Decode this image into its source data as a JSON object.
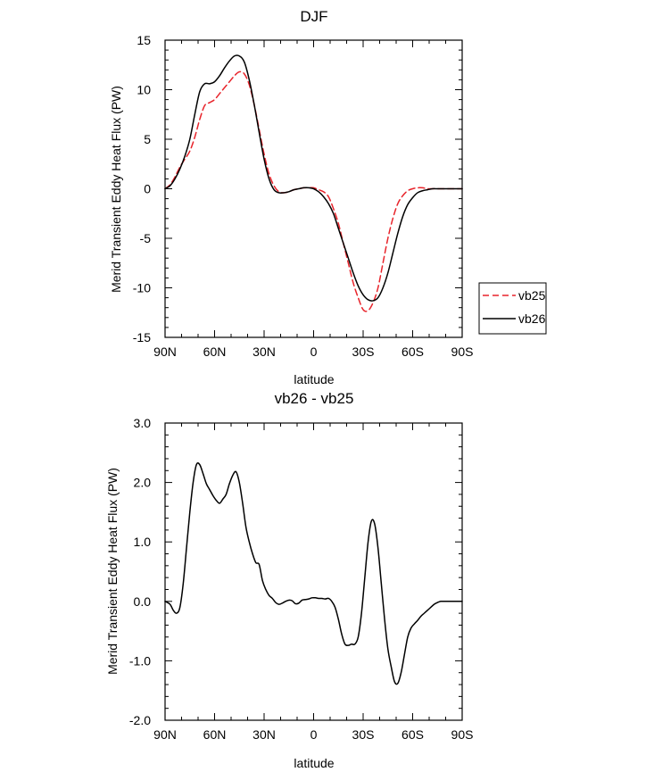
{
  "chart_data": [
    {
      "type": "line",
      "title": "DJF",
      "xlabel": "latitude",
      "ylabel": "Merid Transient Eddy Heat Flux (PW)",
      "xlim": [
        90,
        -90
      ],
      "ylim": [
        -15,
        15
      ],
      "x_ticks": [
        90,
        60,
        30,
        0,
        -30,
        -60,
        -90
      ],
      "x_tick_labels": [
        "90N",
        "60N",
        "30N",
        "0",
        "30S",
        "60S",
        "90S"
      ],
      "y_ticks": [
        -15,
        -10,
        -5,
        0,
        5,
        10,
        15
      ],
      "y_tick_labels": [
        "-15",
        "-10",
        "-5",
        "0",
        "5",
        "10",
        "15"
      ],
      "legend_position": "right",
      "series": [
        {
          "name": "vb25",
          "color": "#e8242b",
          "dash": "dashed",
          "x": [
            90,
            87,
            84,
            81,
            78,
            75,
            72,
            69,
            66,
            63,
            60,
            57,
            54,
            51,
            48,
            45,
            42,
            39,
            36,
            33,
            30,
            27,
            24,
            21,
            18,
            15,
            12,
            9,
            6,
            3,
            0,
            -3,
            -6,
            -9,
            -12,
            -15,
            -18,
            -21,
            -24,
            -27,
            -30,
            -33,
            -36,
            -39,
            -42,
            -45,
            -48,
            -51,
            -54,
            -57,
            -60,
            -63,
            -66,
            -69,
            -72,
            -75,
            -78,
            -81,
            -84,
            -87,
            -90
          ],
          "values": [
            0,
            0.4,
            1.2,
            2.2,
            3.0,
            3.8,
            5.2,
            7.0,
            8.4,
            8.7,
            9.0,
            9.6,
            10.2,
            10.8,
            11.4,
            11.8,
            11.6,
            10.5,
            8.5,
            6.0,
            3.5,
            1.5,
            0.3,
            -0.3,
            -0.4,
            -0.3,
            -0.1,
            0.0,
            0.1,
            0.1,
            0.1,
            -0.1,
            -0.3,
            -0.8,
            -2.0,
            -3.5,
            -5.5,
            -7.5,
            -9.5,
            -11.0,
            -12.2,
            -12.3,
            -11.5,
            -10.0,
            -7.5,
            -5.0,
            -3.0,
            -1.5,
            -0.7,
            -0.2,
            0.0,
            0.1,
            0.1,
            0.0,
            0.0,
            0.0,
            0.0,
            0.0,
            0.0,
            0.0,
            0.0
          ]
        },
        {
          "name": "vb26",
          "color": "#000000",
          "dash": "solid",
          "x": [
            90,
            87,
            84,
            81,
            78,
            75,
            72,
            69,
            66,
            63,
            60,
            57,
            54,
            51,
            48,
            45,
            42,
            39,
            36,
            33,
            30,
            27,
            24,
            21,
            18,
            15,
            12,
            9,
            6,
            3,
            0,
            -3,
            -6,
            -9,
            -12,
            -15,
            -18,
            -21,
            -24,
            -27,
            -30,
            -33,
            -36,
            -39,
            -42,
            -45,
            -48,
            -51,
            -54,
            -57,
            -60,
            -63,
            -66,
            -69,
            -72,
            -75,
            -78,
            -81,
            -84,
            -87,
            -90
          ],
          "values": [
            0,
            0.3,
            1.0,
            2.0,
            3.3,
            5.0,
            7.5,
            9.8,
            10.6,
            10.6,
            10.8,
            11.4,
            12.2,
            12.9,
            13.4,
            13.4,
            12.8,
            11.0,
            8.5,
            5.7,
            3.0,
            1.0,
            -0.1,
            -0.4,
            -0.4,
            -0.3,
            -0.1,
            0.0,
            0.1,
            0.1,
            0.0,
            -0.3,
            -0.8,
            -1.5,
            -2.5,
            -4.0,
            -5.5,
            -7.0,
            -8.5,
            -9.8,
            -10.7,
            -11.2,
            -11.3,
            -11.0,
            -10.0,
            -8.5,
            -6.5,
            -4.5,
            -2.8,
            -1.6,
            -0.9,
            -0.4,
            -0.2,
            -0.1,
            0.0,
            0.0,
            0.0,
            0.0,
            0.0,
            0.0,
            0.0
          ]
        }
      ]
    },
    {
      "type": "line",
      "title": "vb26 - vb25",
      "xlabel": "latitude",
      "ylabel": "Merid Transient Eddy Heat Flux (PW)",
      "xlim": [
        90,
        -90
      ],
      "ylim": [
        -2.0,
        3.0
      ],
      "x_ticks": [
        90,
        60,
        30,
        0,
        -30,
        -60,
        -90
      ],
      "x_tick_labels": [
        "90N",
        "60N",
        "30N",
        "0",
        "30S",
        "60S",
        "90S"
      ],
      "y_ticks": [
        -2.0,
        -1.0,
        0.0,
        1.0,
        2.0,
        3.0
      ],
      "y_tick_labels": [
        "-2.0",
        "-1.0",
        "0.0",
        "1.0",
        "2.0",
        "3.0"
      ],
      "series": [
        {
          "color": "#000000",
          "dash": "solid",
          "x": [
            90,
            87,
            85,
            83,
            81,
            79,
            77,
            75,
            73,
            71,
            69,
            67,
            65,
            63,
            61,
            59,
            57,
            55,
            53,
            51,
            49,
            47,
            45,
            43,
            41,
            39,
            37,
            35,
            33,
            31,
            29,
            27,
            25,
            23,
            21,
            19,
            17,
            15,
            13,
            11,
            9,
            7,
            5,
            3,
            1,
            -1,
            -3,
            -5,
            -7,
            -9,
            -11,
            -13,
            -15,
            -17,
            -19,
            -21,
            -23,
            -25,
            -27,
            -29,
            -31,
            -33,
            -35,
            -37,
            -39,
            -41,
            -43,
            -45,
            -47,
            -49,
            -51,
            -53,
            -55,
            -57,
            -59,
            -61,
            -63,
            -65,
            -67,
            -69,
            -71,
            -73,
            -75,
            -77,
            -79,
            -81,
            -83,
            -85,
            -87,
            -90
          ],
          "values": [
            0,
            -0.05,
            -0.15,
            -0.2,
            -0.1,
            0.3,
            0.9,
            1.5,
            2.0,
            2.3,
            2.3,
            2.15,
            1.98,
            1.88,
            1.78,
            1.7,
            1.65,
            1.72,
            1.8,
            1.98,
            2.12,
            2.18,
            2.0,
            1.65,
            1.25,
            1.0,
            0.8,
            0.65,
            0.62,
            0.35,
            0.2,
            0.1,
            0.05,
            -0.02,
            -0.05,
            -0.03,
            0.0,
            0.02,
            0.01,
            -0.04,
            -0.03,
            0.02,
            0.03,
            0.04,
            0.06,
            0.06,
            0.05,
            0.05,
            0.04,
            0.05,
            0.0,
            -0.1,
            -0.3,
            -0.55,
            -0.72,
            -0.74,
            -0.72,
            -0.72,
            -0.6,
            -0.2,
            0.4,
            1.0,
            1.35,
            1.3,
            0.9,
            0.3,
            -0.3,
            -0.8,
            -1.1,
            -1.35,
            -1.38,
            -1.2,
            -0.9,
            -0.6,
            -0.45,
            -0.38,
            -0.32,
            -0.25,
            -0.2,
            -0.15,
            -0.1,
            -0.05,
            -0.02,
            0.0,
            0.0,
            0.0,
            0.0,
            0.0,
            0.0,
            0.0
          ]
        }
      ]
    }
  ]
}
